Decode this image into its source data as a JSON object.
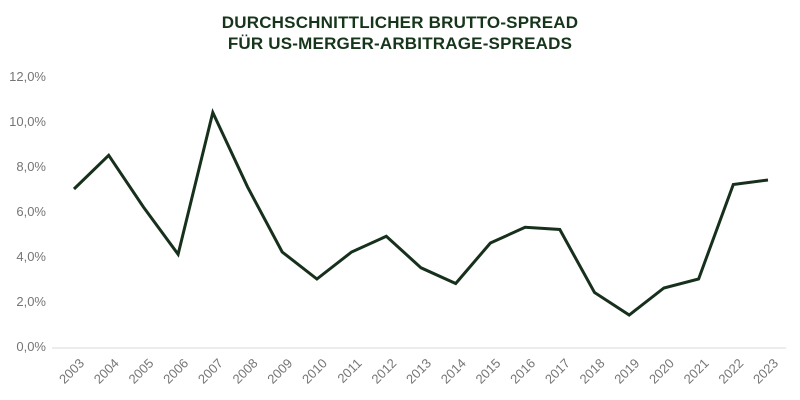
{
  "title": {
    "line1": "DURCHSCHNITTLICHER BRUTTO-SPREAD",
    "line2": "FÜR US-MERGER-ARBITRAGE-SPREADS"
  },
  "colors": {
    "line": "#16301c",
    "title_text": "#16351b",
    "axis_line": "#d9d9d9",
    "tick_text": "#757575"
  },
  "chart_data": {
    "type": "line",
    "title": "DURCHSCHNITTLICHER BRUTTO-SPREAD FÜR US-MERGER-ARBITRAGE-SPREADS",
    "categories": [
      "2003",
      "2004",
      "2005",
      "2006",
      "2007",
      "2008",
      "2009",
      "2010",
      "2011",
      "2012",
      "2013",
      "2014",
      "2015",
      "2016",
      "2017",
      "2018",
      "2019",
      "2020",
      "2021",
      "2022",
      "2023"
    ],
    "values": [
      7.0,
      8.5,
      6.2,
      4.1,
      10.4,
      7.1,
      4.2,
      3.0,
      4.2,
      4.9,
      3.5,
      2.8,
      4.6,
      5.3,
      5.2,
      2.4,
      1.4,
      2.6,
      3.0,
      7.2,
      7.4
    ],
    "xlabel": "",
    "ylabel": "",
    "ylim": [
      0,
      12
    ],
    "y_ticks": [
      0,
      2,
      4,
      6,
      8,
      10,
      12
    ],
    "y_tick_labels": [
      "0,0%",
      "2,0%",
      "4,0%",
      "6,0%",
      "8,0%",
      "10,0%",
      "12,0%"
    ],
    "grid": false,
    "legend": false
  }
}
